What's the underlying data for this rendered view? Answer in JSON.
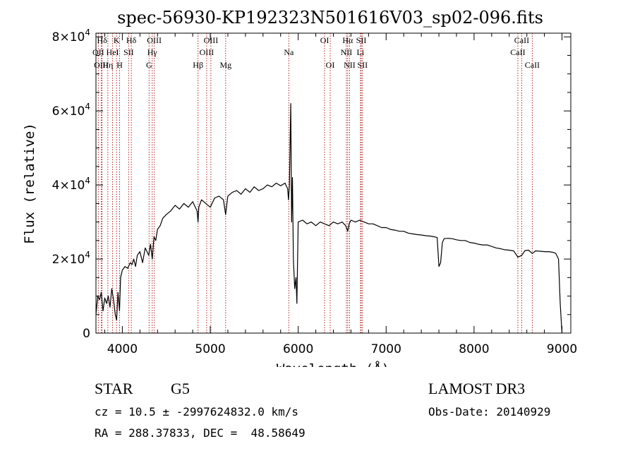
{
  "chart_data": {
    "type": "line",
    "title": "spec-56930-KP192323N501616V03_sp02-096.fits",
    "xlabel": "Wavelength (Å)",
    "ylabel": "Flux (relative)",
    "xlim": [
      3700,
      9100
    ],
    "ylim": [
      0,
      81000
    ],
    "x_ticks": [
      4000,
      5000,
      6000,
      7000,
      8000,
      9000
    ],
    "x_tick_labels": [
      "4000",
      "5000",
      "6000",
      "7000",
      "8000",
      "9000"
    ],
    "y_ticks": [
      0,
      20000,
      40000,
      60000,
      80000
    ],
    "y_tick_labels": [
      {
        "mantissa": "0",
        "exp": ""
      },
      {
        "mantissa": "2×10",
        "exp": "4"
      },
      {
        "mantissa": "4×10",
        "exp": "4"
      },
      {
        "mantissa": "6×10",
        "exp": "4"
      },
      {
        "mantissa": "8×10",
        "exp": "4"
      }
    ],
    "series": [
      {
        "name": "spectrum",
        "x": [
          3700,
          3720,
          3740,
          3760,
          3780,
          3800,
          3820,
          3840,
          3860,
          3880,
          3900,
          3920,
          3935,
          3950,
          3968,
          3980,
          4000,
          4030,
          4060,
          4090,
          4110,
          4130,
          4150,
          4170,
          4200,
          4230,
          4260,
          4300,
          4320,
          4340,
          4360,
          4380,
          4400,
          4430,
          4460,
          4500,
          4550,
          4600,
          4650,
          4700,
          4750,
          4800,
          4850,
          4861,
          4870,
          4900,
          4950,
          5000,
          5050,
          5100,
          5150,
          5175,
          5200,
          5250,
          5300,
          5350,
          5400,
          5450,
          5500,
          5550,
          5600,
          5650,
          5700,
          5750,
          5800,
          5850,
          5880,
          5890,
          5900,
          5915,
          5925,
          5935,
          5945,
          5960,
          5975,
          5985,
          6000,
          6050,
          6100,
          6150,
          6200,
          6250,
          6300,
          6350,
          6400,
          6450,
          6500,
          6540,
          6563,
          6580,
          6600,
          6650,
          6700,
          6750,
          6800,
          6850,
          6900,
          6950,
          7000,
          7050,
          7100,
          7150,
          7200,
          7250,
          7300,
          7350,
          7400,
          7450,
          7500,
          7550,
          7580,
          7600,
          7620,
          7640,
          7660,
          7700,
          7750,
          7800,
          7850,
          7900,
          7950,
          8000,
          8050,
          8100,
          8150,
          8200,
          8250,
          8300,
          8350,
          8400,
          8450,
          8498,
          8542,
          8580,
          8620,
          8662,
          8700,
          8750,
          8800,
          8850,
          8900,
          8930,
          8960,
          8980,
          9000
        ],
        "y": [
          5000,
          10000,
          9000,
          11000,
          6000,
          9500,
          8000,
          10000,
          7000,
          12000,
          9000,
          5000,
          3500,
          11000,
          6000,
          15000,
          17000,
          18000,
          17500,
          19000,
          18500,
          20000,
          18000,
          21000,
          22000,
          19000,
          23000,
          21000,
          24000,
          20000,
          26000,
          25000,
          28000,
          29000,
          31000,
          32000,
          33000,
          34500,
          33500,
          35000,
          34000,
          35500,
          33000,
          30000,
          34000,
          36000,
          35000,
          34000,
          36500,
          37000,
          36000,
          32000,
          37000,
          38000,
          38500,
          37500,
          39000,
          38000,
          39500,
          38500,
          39000,
          40000,
          39500,
          40500,
          39800,
          40500,
          39000,
          36000,
          40000,
          62000,
          30000,
          42000,
          20000,
          12000,
          15000,
          8000,
          30000,
          30500,
          29500,
          30000,
          29000,
          30000,
          29500,
          29000,
          30000,
          29500,
          30000,
          29000,
          27500,
          29500,
          30500,
          30000,
          30500,
          30000,
          29500,
          29500,
          29000,
          28500,
          28500,
          28000,
          27800,
          27500,
          27500,
          27000,
          26800,
          26600,
          26500,
          26300,
          26200,
          26000,
          25800,
          18000,
          19000,
          24500,
          25500,
          25600,
          25500,
          25200,
          25000,
          25000,
          24500,
          24300,
          24000,
          23800,
          23800,
          23400,
          23000,
          22800,
          22500,
          22400,
          22200,
          20500,
          21000,
          22300,
          22400,
          21500,
          22200,
          22100,
          22000,
          22000,
          21800,
          21500,
          20000,
          8000,
          0
        ]
      }
    ],
    "lines": [
      {
        "name": "Hδ",
        "x": 3770,
        "row": 0
      },
      {
        "name": "OII",
        "x": 3727,
        "row": 1
      },
      {
        "name": "OIII",
        "x": 3760,
        "row": 2
      },
      {
        "name": "K",
        "x": 3934,
        "row": 0
      },
      {
        "name": "HeI",
        "x": 3889,
        "row": 1
      },
      {
        "name": "Hη",
        "x": 3835,
        "row": 2
      },
      {
        "name": "SII",
        "x": 4072,
        "row": 1
      },
      {
        "name": "H",
        "x": 3969,
        "row": 2
      },
      {
        "name": "Hδ",
        "x": 4102,
        "row": 0
      },
      {
        "name": "OIII",
        "x": 4363,
        "row": 0
      },
      {
        "name": "Hγ",
        "x": 4340,
        "row": 1
      },
      {
        "name": "G",
        "x": 4304,
        "row": 2
      },
      {
        "name": "Hβ",
        "x": 4861,
        "row": 2
      },
      {
        "name": "OIII",
        "x": 5007,
        "row": 0
      },
      {
        "name": "OIII",
        "x": 4959,
        "row": 1
      },
      {
        "name": "Mg",
        "x": 5175,
        "row": 2
      },
      {
        "name": "Na",
        "x": 5893,
        "row": 1
      },
      {
        "name": "OI",
        "x": 6300,
        "row": 0
      },
      {
        "name": "OI",
        "x": 6364,
        "row": 2
      },
      {
        "name": "Hα",
        "x": 6563,
        "row": 0
      },
      {
        "name": "NII",
        "x": 6548,
        "row": 1
      },
      {
        "name": "NII",
        "x": 6584,
        "row": 2
      },
      {
        "name": "SII",
        "x": 6717,
        "row": 0
      },
      {
        "name": "Li",
        "x": 6708,
        "row": 1
      },
      {
        "name": "SII",
        "x": 6731,
        "row": 2
      },
      {
        "name": "CaII",
        "x": 8542,
        "row": 0
      },
      {
        "name": "CaII",
        "x": 8498,
        "row": 1
      },
      {
        "name": "CaII",
        "x": 8662,
        "row": 2
      }
    ]
  },
  "info": {
    "object_class": "STAR",
    "subclass": "G5",
    "survey": "LAMOST DR3",
    "cz_line": "cz = 10.5 ± -2997624832.0 km/s",
    "obs_date_line": "Obs-Date: 20140929",
    "radec_line": "RA = 288.37833, DEC =  48.58649"
  },
  "colors": {
    "spectrum": "#000000",
    "line_markers": "#b22222",
    "axes": "#000000"
  }
}
